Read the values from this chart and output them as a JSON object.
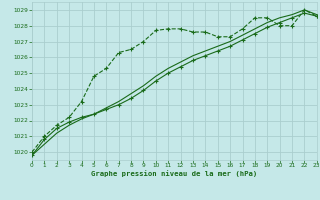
{
  "title": "Graphe pression niveau de la mer (hPa)",
  "bg_color": "#c5e8e8",
  "grid_color": "#aacece",
  "line_color": "#1a6b1a",
  "xlim": [
    0,
    23
  ],
  "ylim": [
    1019.5,
    1029.5
  ],
  "xticks": [
    0,
    1,
    2,
    3,
    4,
    5,
    6,
    7,
    8,
    9,
    10,
    11,
    12,
    13,
    14,
    15,
    16,
    17,
    18,
    19,
    20,
    21,
    22,
    23
  ],
  "yticks": [
    1020,
    1021,
    1022,
    1023,
    1024,
    1025,
    1026,
    1027,
    1028,
    1029
  ],
  "series1_x": [
    0,
    1,
    2,
    3,
    4,
    5,
    6,
    7,
    8,
    9,
    10,
    11,
    12,
    13,
    14,
    15,
    16,
    17,
    18,
    19,
    20,
    21,
    22,
    23
  ],
  "series1_y": [
    1020.0,
    1021.0,
    1021.7,
    1022.2,
    1023.2,
    1024.8,
    1025.3,
    1026.3,
    1026.5,
    1027.0,
    1027.7,
    1027.8,
    1027.8,
    1027.6,
    1027.6,
    1027.3,
    1027.3,
    1027.8,
    1028.5,
    1028.5,
    1028.0,
    1028.0,
    1029.0,
    1028.6
  ],
  "series2_x": [
    0,
    1,
    2,
    3,
    4,
    5,
    6,
    7,
    8,
    9,
    10,
    11,
    12,
    13,
    14,
    15,
    16,
    17,
    18,
    19,
    20,
    21,
    22,
    23
  ],
  "series2_y": [
    1019.8,
    1020.8,
    1021.5,
    1021.9,
    1022.2,
    1022.4,
    1022.7,
    1023.0,
    1023.4,
    1023.9,
    1024.5,
    1025.0,
    1025.4,
    1025.8,
    1026.1,
    1026.4,
    1026.7,
    1027.1,
    1027.5,
    1027.9,
    1028.2,
    1028.5,
    1028.8,
    1028.6
  ],
  "series3_x": [
    0,
    1,
    2,
    3,
    4,
    5,
    6,
    7,
    8,
    9,
    10,
    11,
    12,
    13,
    14,
    15,
    16,
    17,
    18,
    19,
    20,
    21,
    22,
    23
  ],
  "series3_y": [
    1019.8,
    1020.5,
    1021.2,
    1021.7,
    1022.1,
    1022.4,
    1022.8,
    1023.2,
    1023.7,
    1024.2,
    1024.8,
    1025.3,
    1025.7,
    1026.1,
    1026.4,
    1026.7,
    1027.0,
    1027.4,
    1027.8,
    1028.2,
    1028.5,
    1028.7,
    1029.0,
    1028.7
  ]
}
